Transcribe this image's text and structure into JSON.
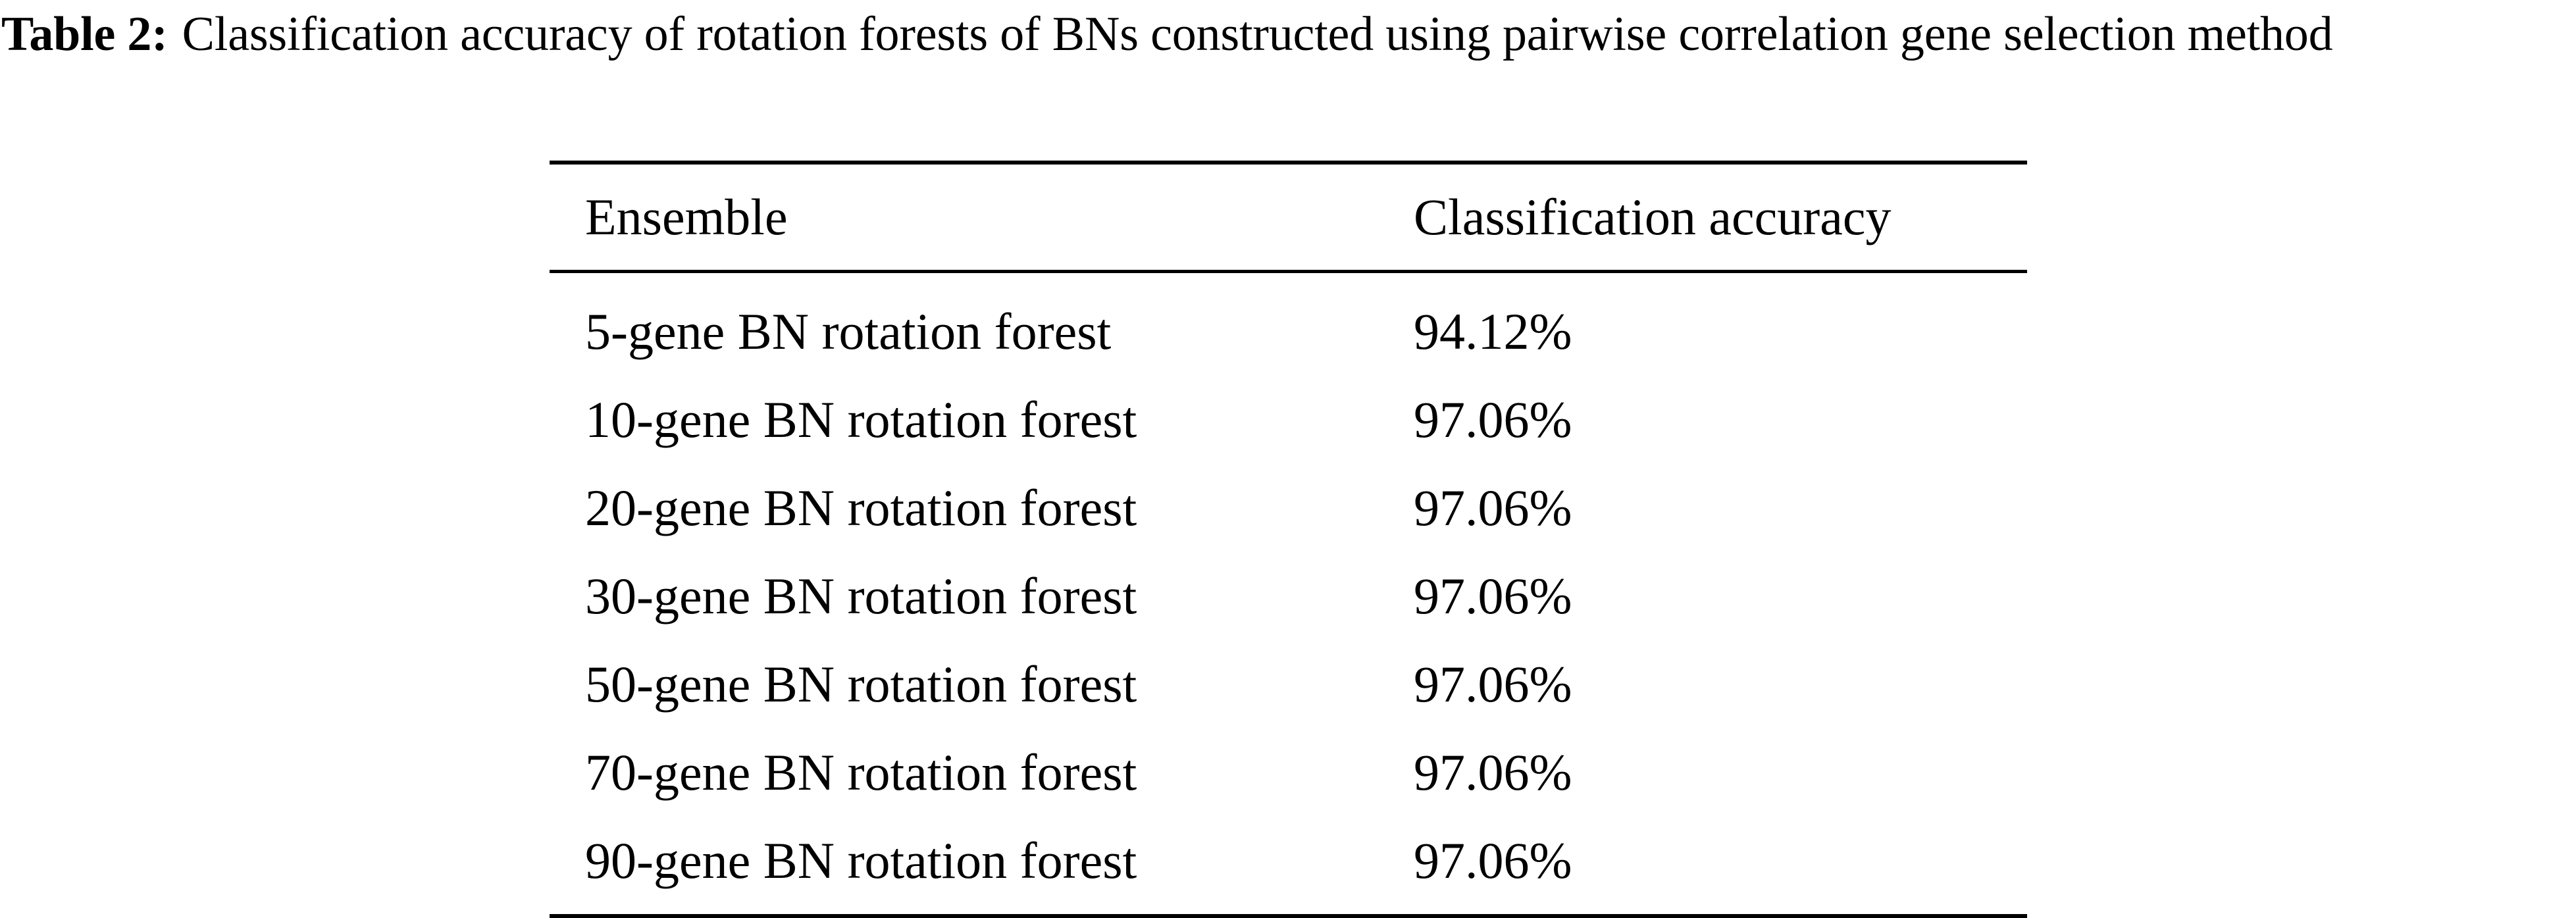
{
  "caption": {
    "label": "Table 2:",
    "text": "Classification accuracy of rotation forests of BNs constructed using pairwise correlation gene selection method"
  },
  "table": {
    "columns": [
      "Ensemble",
      "Classification accuracy"
    ],
    "rows": [
      [
        "5-gene BN rotation forest",
        "94.12%"
      ],
      [
        "10-gene BN rotation forest",
        "97.06%"
      ],
      [
        "20-gene BN rotation forest",
        "97.06%"
      ],
      [
        "30-gene BN rotation forest",
        "97.06%"
      ],
      [
        "50-gene BN rotation forest",
        "97.06%"
      ],
      [
        "70-gene BN rotation forest",
        "97.06%"
      ],
      [
        "90-gene BN rotation forest",
        "97.06%"
      ]
    ]
  }
}
